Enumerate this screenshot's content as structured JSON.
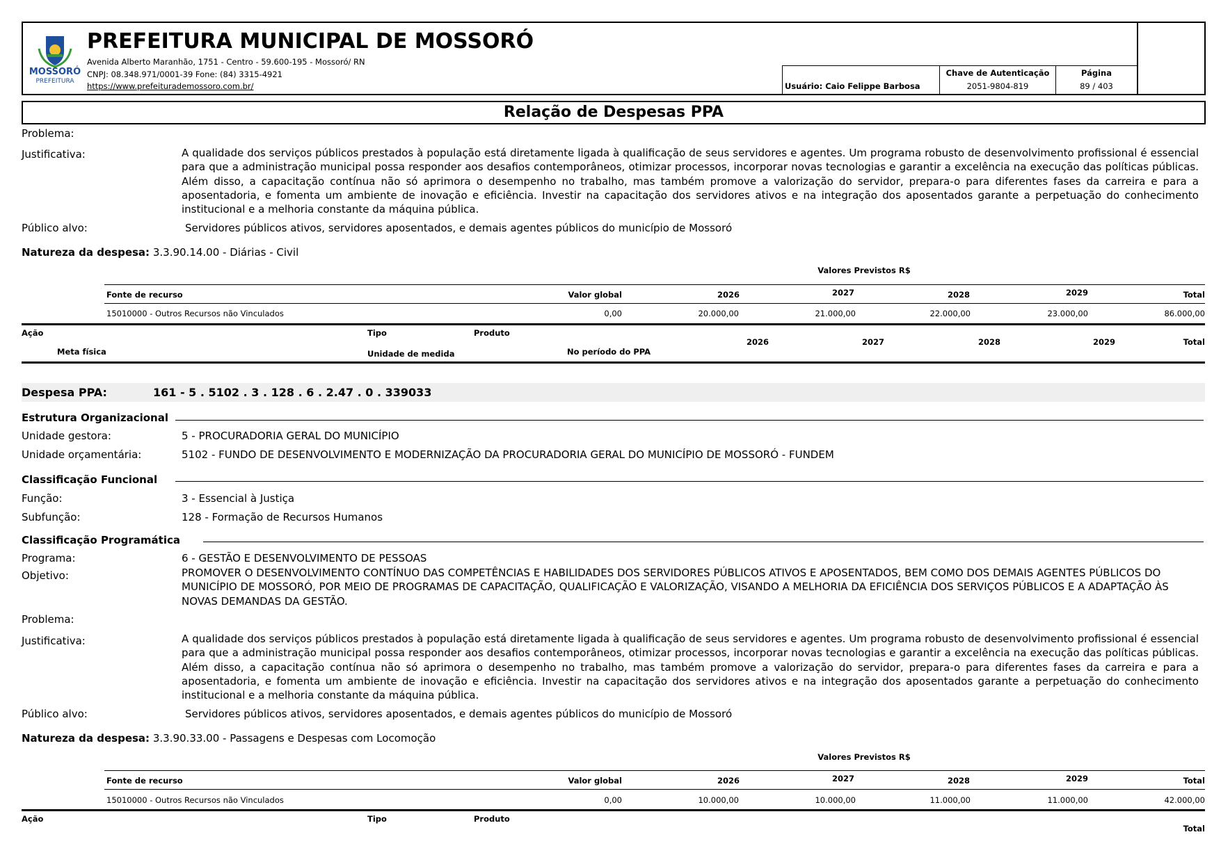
{
  "header": {
    "logo_text": "MOSSORÓ",
    "logo_subtext": "PREFEITURA",
    "title": "PREFEITURA MUNICIPAL DE MOSSORÓ",
    "address": "Avenida Alberto Maranhão, 1751 - Centro - 59.600-195 - Mossoró/ RN",
    "contact": "CNPJ: 08.348.971/0001-39 Fone: (84) 3315-4921",
    "website": "https://www.prefeiturademossoro.com.br/",
    "user": "Usuário: Caio Felippe Barbosa",
    "auth_label": "Chave de Autenticação",
    "auth_value": "2051-9804-819",
    "page_label": "Página",
    "page_value": "89 / 403"
  },
  "report_title": "Relação de Despesas PPA",
  "labels": {
    "problema": "Problema:",
    "justificativa": "Justificativa:",
    "publico": "Público alvo:",
    "natureza": "Natureza da despesa:",
    "valores_previstos": "Valores Previstos R$",
    "fonte": "Fonte de recurso",
    "valor_global": "Valor global",
    "total": "Total",
    "acao": "Ação",
    "tipo": "Tipo",
    "produto": "Produto",
    "meta_fisica": "Meta física",
    "unidade_medida": "Unidade de medida",
    "no_periodo": "No período do PPA",
    "despesa_ppa": "Despesa PPA:",
    "estrutura": "Estrutura Organizacional",
    "unidade_gestora": "Unidade gestora:",
    "unidade_orcamentaria": "Unidade orçamentária:",
    "class_funcional": "Classificação Funcional",
    "funcao": "Função:",
    "subfuncao": "Subfunção:",
    "class_programatica": "Classificação Programática",
    "programa": "Programa:",
    "objetivo": "Objetivo:"
  },
  "years": [
    "2026",
    "2027",
    "2028",
    "2029"
  ],
  "section1": {
    "justificativa": "A qualidade dos serviços públicos prestados à população está diretamente ligada à qualificação de seus servidores e agentes. Um programa robusto de desenvolvimento profissional é essencial para que a administração municipal possa responder aos desafios contemporâneos, otimizar processos, incorporar novas tecnologias e garantir a excelência na execução das políticas públicas. Além disso, a capacitação contínua não só aprimora o desempenho no trabalho, mas também promove a valorização do servidor, prepara-o para diferentes fases da carreira e para a aposentadoria, e fomenta um ambiente de inovação e eficiência. Investir na capacitação dos servidores ativos e na integração dos aposentados garante a perpetuação do conhecimento institucional e a melhoria constante da máquina pública.",
    "publico": "Servidores públicos ativos, servidores aposentados, e demais agentes públicos do município de Mossoró",
    "natureza": "3.3.90.14.00 - Diárias - Civil",
    "fonte": "15010000 - Outros Recursos não Vinculados",
    "valor_global": "0,00",
    "values": [
      "20.000,00",
      "21.000,00",
      "22.000,00",
      "23.000,00"
    ],
    "total": "86.000,00"
  },
  "section2": {
    "despesa_ppa": "161 - 5 . 5102 . 3 . 128 . 6 . 2.47 . 0 . 339033",
    "unidade_gestora": "5 - PROCURADORIA GERAL DO MUNICÍPIO",
    "unidade_orcamentaria": "5102 - FUNDO DE DESENVOLVIMENTO E MODERNIZAÇÃO DA PROCURADORIA GERAL DO MUNICÍPIO DE MOSSORÓ - FUNDEM",
    "funcao": "3 - Essencial à Justiça",
    "subfuncao": "128 - Formação de Recursos Humanos",
    "programa": "6 - GESTÃO E DESENVOLVIMENTO DE PESSOAS",
    "objetivo": "PROMOVER O DESENVOLVIMENTO CONTÍNUO DAS COMPETÊNCIAS E HABILIDADES DOS SERVIDORES PÚBLICOS ATIVOS E APOSENTADOS, BEM COMO DOS DEMAIS AGENTES PÚBLICOS DO MUNICÍPIO DE MOSSORÓ, POR MEIO DE PROGRAMAS DE CAPACITAÇÃO, QUALIFICAÇÃO E VALORIZAÇÃO, VISANDO A MELHORIA DA EFICIÊNCIA DOS SERVIÇOS PÚBLICOS E A ADAPTAÇÃO ÀS NOVAS DEMANDAS DA GESTÃO.",
    "justificativa": "A qualidade dos serviços públicos prestados à população está diretamente ligada à qualificação de seus servidores e agentes. Um programa robusto de desenvolvimento profissional é essencial para que a administração municipal possa responder aos desafios contemporâneos, otimizar processos, incorporar novas tecnologias e garantir a excelência na execução das políticas públicas. Além disso, a capacitação contínua não só aprimora o desempenho no trabalho, mas também promove a valorização do servidor, prepara-o para diferentes fases da carreira e para a aposentadoria, e fomenta um ambiente de inovação e eficiência. Investir na capacitação dos servidores ativos e na integração dos aposentados garante a perpetuação do conhecimento institucional e a melhoria constante da máquina pública.",
    "publico": "Servidores públicos ativos, servidores aposentados, e demais agentes públicos do município de Mossoró",
    "natureza": "3.3.90.33.00 - Passagens e Despesas com Locomoção",
    "fonte": "15010000 - Outros Recursos não Vinculados",
    "valor_global": "0,00",
    "values": [
      "10.000,00",
      "10.000,00",
      "11.000,00",
      "11.000,00"
    ],
    "total": "42.000,00"
  },
  "colors": {
    "logo_blue": "#1d4f9c",
    "logo_green": "#3a9a3a",
    "logo_yellow": "#f2c230",
    "band_grey": "#efefef"
  }
}
